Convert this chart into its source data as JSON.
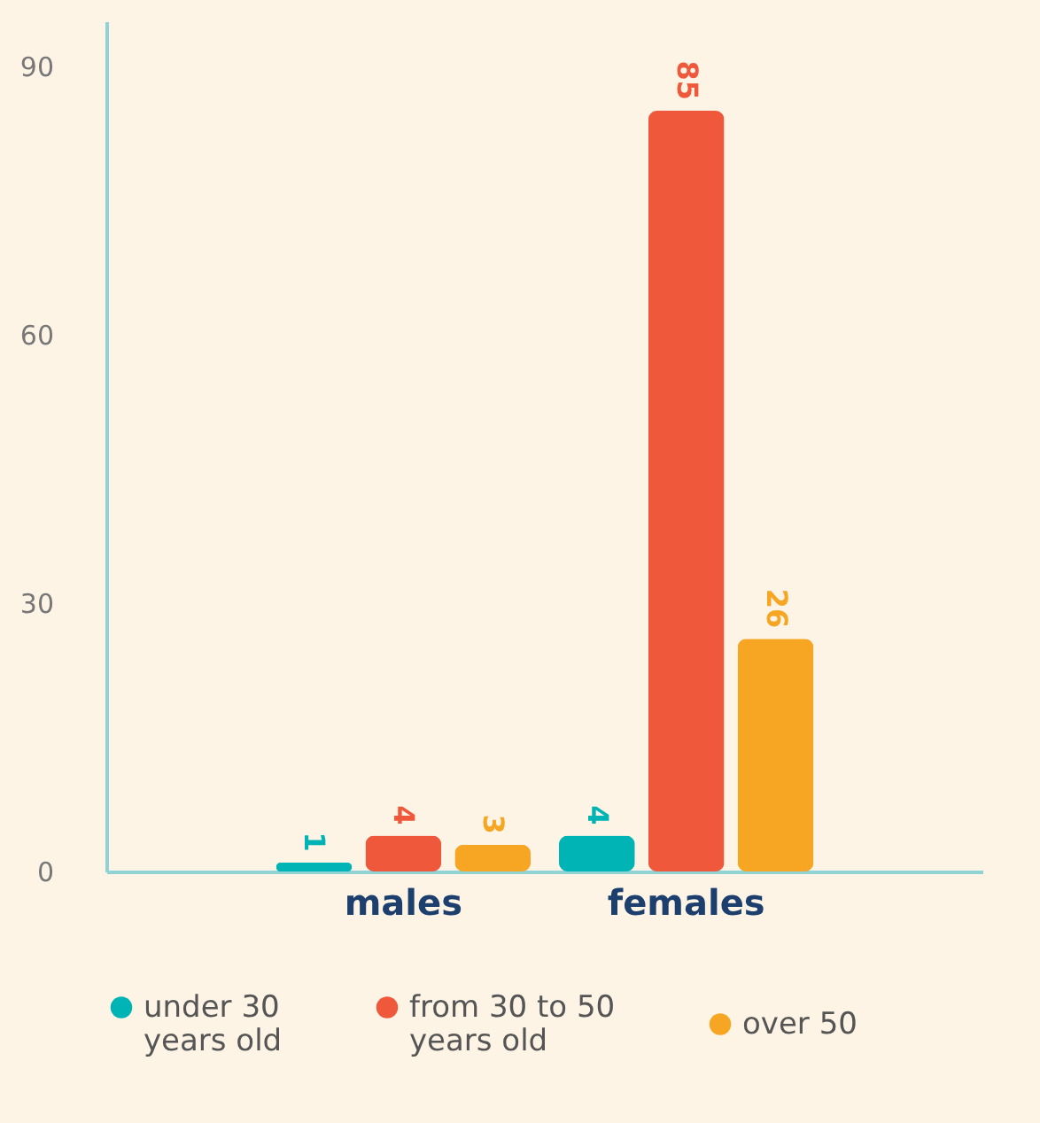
{
  "chart_data": {
    "type": "bar",
    "categories": [
      "males",
      "females"
    ],
    "series": [
      {
        "name": "under 30 years old",
        "color": "#00b4b6",
        "values": [
          1,
          4
        ]
      },
      {
        "name": "from 30 to 50 years old",
        "color": "#f0583c",
        "values": [
          4,
          85
        ]
      },
      {
        "name": "over 50",
        "color": "#f6a623",
        "values": [
          3,
          26
        ]
      }
    ],
    "ylim": [
      0,
      95
    ],
    "yticks": [
      0,
      30,
      60,
      90
    ],
    "grid": false,
    "legend": "bottom",
    "data_labels": true
  }
}
